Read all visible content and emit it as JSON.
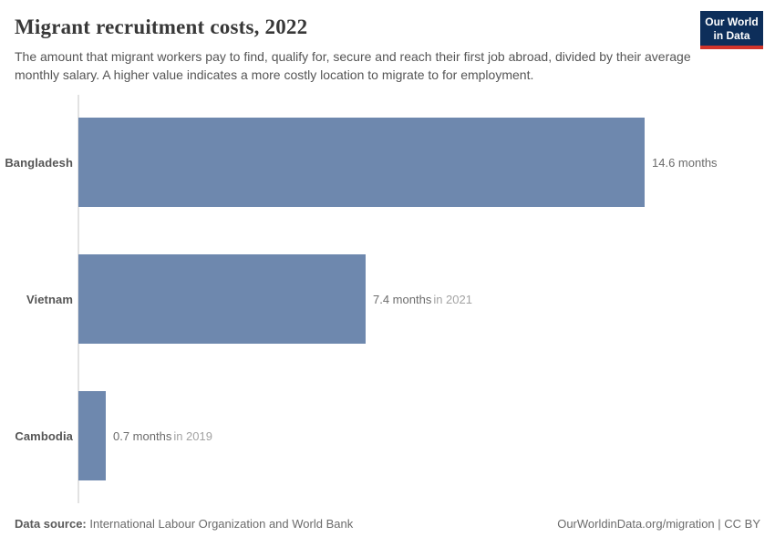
{
  "header": {
    "title": "Migrant recruitment costs, 2022",
    "subtitle": "The amount that migrant workers pay to find, qualify for, secure and reach their first job abroad, divided by their average monthly salary. A higher value indicates a more costly location to migrate to for employment.",
    "logo": {
      "line1": "Our World",
      "line2": "in Data",
      "bg_color": "#0d2e5a",
      "accent_color": "#d1342b"
    }
  },
  "chart_data": {
    "type": "bar",
    "orientation": "horizontal",
    "title": "Migrant recruitment costs, 2022",
    "categories": [
      "Bangladesh",
      "Vietnam",
      "Cambodia"
    ],
    "values": [
      14.6,
      7.4,
      0.7
    ],
    "unit": "months",
    "value_labels": [
      "14.6 months",
      "7.4 months",
      "0.7 months"
    ],
    "year_notes": [
      "",
      "in 2021",
      "in 2019"
    ],
    "xlim": [
      0,
      14.6
    ],
    "xlabel": "",
    "ylabel": "",
    "grid": false,
    "legend": "none",
    "bar_color": "#6e88ae",
    "axis_color": "#e2e2e2"
  },
  "footer": {
    "source_label": "Data source:",
    "source_value": "International Labour Organization and World Bank",
    "credit": "OurWorldinData.org/migration | CC BY"
  }
}
